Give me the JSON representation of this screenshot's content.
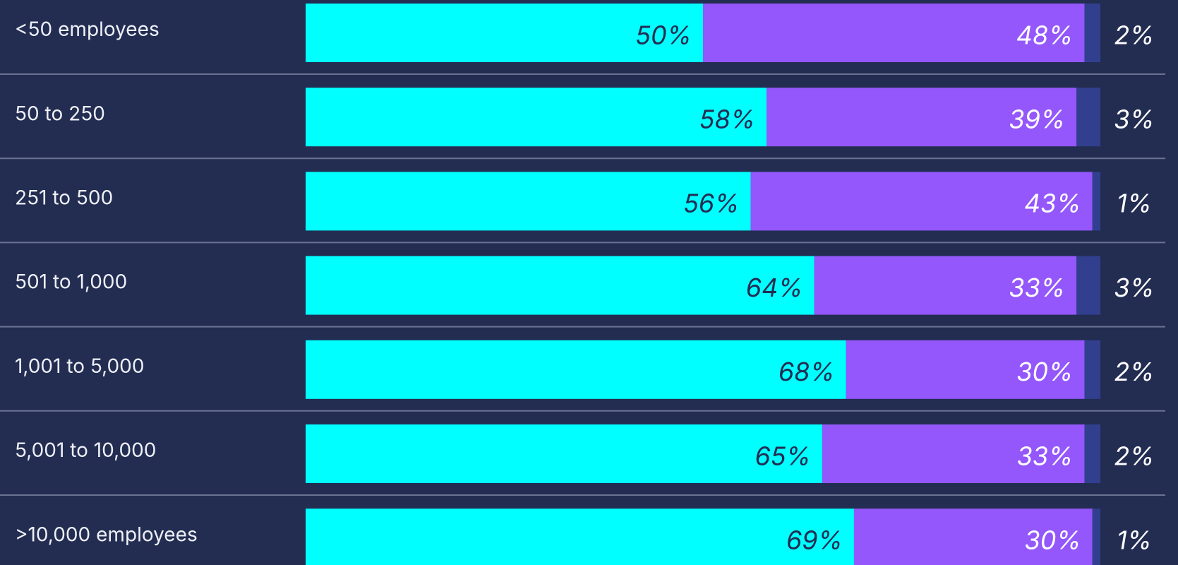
{
  "chart_data": {
    "type": "stacked_barh",
    "categories": [
      "<50 employees",
      "50 to 250",
      "251 to 500",
      "501 to 1,000",
      "1,001 to 5,000",
      "5,001 to 10,000",
      ">10,000 employees"
    ],
    "series": [
      {
        "color": "#00ffff",
        "values": [
          50,
          58,
          56,
          64,
          68,
          65,
          69
        ],
        "value_labels": [
          "50%",
          "58%",
          "56%",
          "64%",
          "68%",
          "65%",
          "69%"
        ]
      },
      {
        "color": "#9457fb",
        "values": [
          48,
          39,
          43,
          33,
          30,
          33,
          30
        ],
        "value_labels": [
          "48%",
          "39%",
          "43%",
          "33%",
          "30%",
          "33%",
          "30%"
        ]
      },
      {
        "color": "#323f8f",
        "values": [
          2,
          3,
          1,
          3,
          2,
          2,
          1
        ],
        "value_labels": [
          "2%",
          "3%",
          "1%",
          "3%",
          "2%",
          "2%",
          "1%"
        ]
      }
    ]
  }
}
